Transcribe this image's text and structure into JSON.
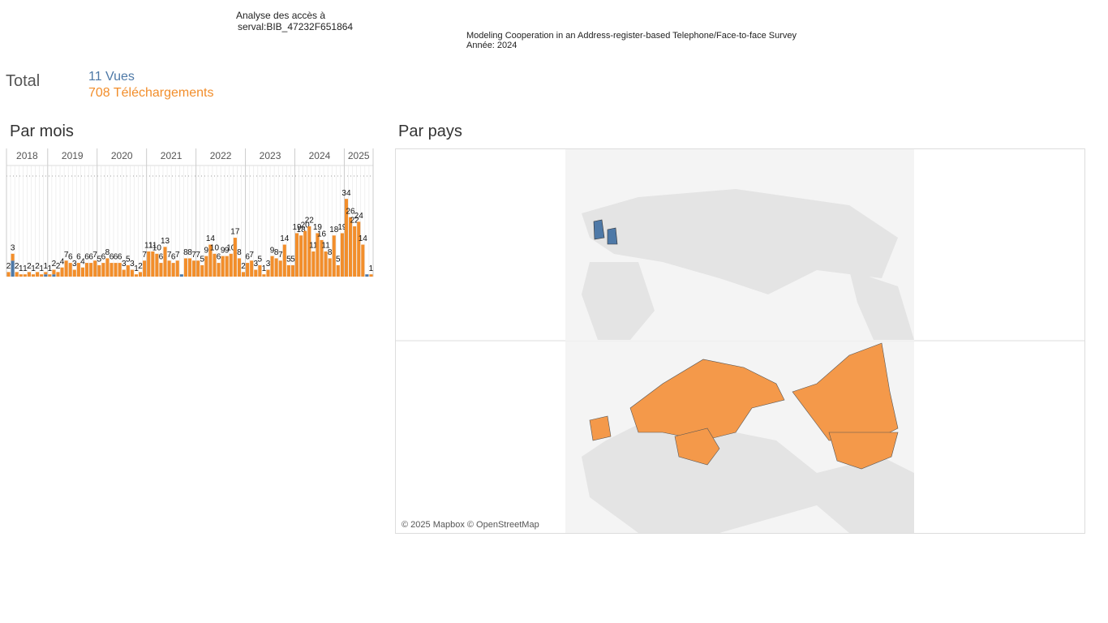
{
  "header": {
    "title_line1": "Analyse des accès à",
    "title_line2": "serval:BIB_47232F651864",
    "publication": "Modeling Cooperation in an Address-register-based Telephone/Face-to-face Survey",
    "year": "Année: 2024"
  },
  "totals": {
    "label": "Total",
    "views": "11 Vues",
    "downloads": "708 Téléchargements"
  },
  "sections": {
    "monthly": "Par mois",
    "country": "Par pays"
  },
  "map": {
    "attribution": "© 2025 Mapbox © OpenStreetMap"
  },
  "chart_data": {
    "type": "stacked-bar",
    "categories": [
      "2018",
      "2018",
      "2018",
      "2018",
      "2018",
      "2018",
      "2018",
      "2018",
      "2018",
      "2018",
      "2019",
      "2019",
      "2019",
      "2019",
      "2019",
      "2019",
      "2019",
      "2019",
      "2019",
      "2019",
      "2019",
      "2019",
      "2020",
      "2020",
      "2020",
      "2020",
      "2020",
      "2020",
      "2020",
      "2020",
      "2020",
      "2020",
      "2020",
      "2020",
      "2021",
      "2021",
      "2021",
      "2021",
      "2021",
      "2021",
      "2021",
      "2021",
      "2021",
      "2021",
      "2021",
      "2021",
      "2022",
      "2022",
      "2022",
      "2022",
      "2022",
      "2022",
      "2022",
      "2022",
      "2022",
      "2022",
      "2022",
      "2022",
      "2023",
      "2023",
      "2023",
      "2023",
      "2023",
      "2023",
      "2023",
      "2023",
      "2023",
      "2023",
      "2023",
      "2023",
      "2024",
      "2024",
      "2024",
      "2024",
      "2024",
      "2024",
      "2024",
      "2024",
      "2024",
      "2024",
      "2024",
      "2024",
      "2025",
      "2025",
      "2025",
      "2025",
      "2025",
      "2025",
      "2025"
    ],
    "series": [
      {
        "name": "Vues",
        "color": "#4e79a7",
        "values": [
          0,
          7,
          0,
          0,
          0,
          0,
          0,
          0,
          0,
          1,
          0,
          1,
          0,
          0,
          0,
          0,
          0,
          0,
          0,
          0,
          0,
          0,
          0,
          0,
          0,
          0,
          0,
          0,
          0,
          0,
          0,
          0,
          0,
          0,
          0,
          0,
          0,
          0,
          0,
          0,
          0,
          0,
          1,
          0,
          0,
          0,
          0,
          0,
          0,
          0,
          0,
          0,
          0,
          0,
          0,
          0,
          0,
          0,
          0,
          0,
          0,
          0,
          0,
          0,
          0,
          0,
          0,
          0,
          0,
          0,
          0,
          0,
          0,
          0,
          0,
          0,
          0,
          0,
          0,
          0,
          0,
          0,
          0,
          0,
          0,
          0,
          0,
          1,
          0
        ]
      },
      {
        "name": "Téléchargements",
        "color": "#f28e2b",
        "values": [
          2,
          3,
          2,
          1,
          1,
          2,
          1,
          2,
          1,
          1,
          1,
          2,
          2,
          4,
          7,
          6,
          3,
          6,
          4,
          6,
          6,
          7,
          5,
          6,
          8,
          6,
          6,
          6,
          3,
          5,
          3,
          1,
          2,
          7,
          11,
          11,
          10,
          6,
          13,
          7,
          6,
          7,
          0,
          8,
          8,
          7,
          7,
          5,
          9,
          14,
          10,
          6,
          9,
          9,
          10,
          17,
          8,
          2,
          6,
          7,
          3,
          5,
          1,
          3,
          9,
          8,
          7,
          14,
          5,
          5,
          19,
          18,
          20,
          22,
          11,
          19,
          16,
          11,
          8,
          18,
          5,
          19,
          34,
          26,
          22,
          24,
          14,
          0,
          1
        ]
      }
    ],
    "ylim": [
      0,
      44
    ]
  }
}
